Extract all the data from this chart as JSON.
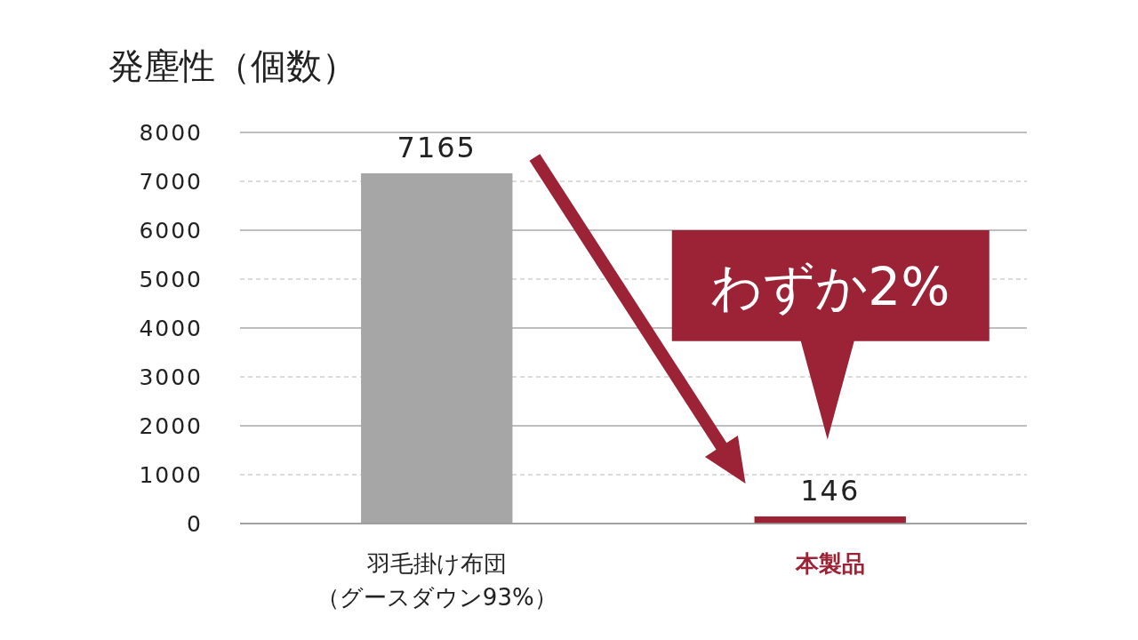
{
  "chart_data": {
    "type": "bar",
    "title": "発塵性（個数）",
    "categories": [
      "羽毛掛け布団（グースダウン93%）",
      "本製品"
    ],
    "values": [
      7165,
      146
    ],
    "colors": [
      "#a6a6a6",
      "#9b2335"
    ],
    "ylim": [
      0,
      8000
    ],
    "yticks": [
      0,
      1000,
      2000,
      3000,
      4000,
      5000,
      6000,
      7000,
      8000
    ],
    "grid": "y",
    "data_labels": true,
    "annotations": [
      "わずか2%"
    ]
  }
}
